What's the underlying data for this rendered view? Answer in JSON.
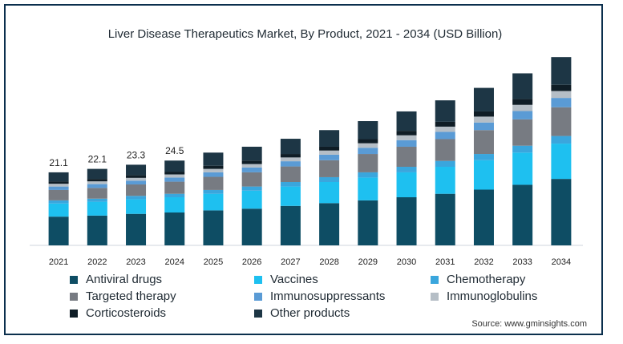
{
  "chart_data": {
    "type": "bar",
    "stacked": true,
    "title": "Liver Disease Therapeutics Market, By Product, 2021 - 2034 (USD Billion)",
    "categories": [
      "2021",
      "2022",
      "2023",
      "2024",
      "2025",
      "2026",
      "2027",
      "2028",
      "2029",
      "2030",
      "2031",
      "2032",
      "2033",
      "2034"
    ],
    "totals_labels": [
      "21.1",
      "22.1",
      "23.3",
      "24.5",
      "",
      "",
      "",
      "",
      "",
      "",
      "",
      "",
      "",
      ""
    ],
    "series": [
      {
        "name": "Antiviral drugs",
        "color": "#0e4d64",
        "values": [
          8.3,
          8.6,
          9.1,
          9.5,
          10.1,
          10.6,
          11.4,
          12.2,
          13.0,
          13.9,
          14.9,
          16.1,
          17.5,
          19.2
        ]
      },
      {
        "name": "Vaccines",
        "color": "#1ec0f0",
        "values": [
          3.8,
          4.0,
          4.2,
          4.4,
          4.8,
          5.2,
          5.6,
          6.1,
          6.6,
          7.2,
          7.8,
          8.5,
          9.3,
          10.2
        ]
      },
      {
        "name": "Chemotherapy",
        "color": "#3aa6dd",
        "values": [
          0.9,
          0.9,
          1.0,
          1.0,
          1.1,
          1.2,
          1.3,
          1.4,
          1.5,
          1.6,
          1.7,
          1.8,
          2.0,
          2.2
        ]
      },
      {
        "name": "Targeted therapy",
        "color": "#777b82",
        "values": [
          3.0,
          3.1,
          3.3,
          3.5,
          3.8,
          4.1,
          4.5,
          4.9,
          5.3,
          5.8,
          6.3,
          6.9,
          7.6,
          8.3
        ]
      },
      {
        "name": "Immunosuppressants",
        "color": "#5a9bd5",
        "values": [
          1.0,
          1.1,
          1.1,
          1.2,
          1.3,
          1.4,
          1.5,
          1.6,
          1.8,
          1.9,
          2.1,
          2.2,
          2.4,
          2.7
        ]
      },
      {
        "name": "Immunoglobulins",
        "color": "#b5bec6",
        "values": [
          0.8,
          0.8,
          0.8,
          0.9,
          1.0,
          1.0,
          1.1,
          1.2,
          1.3,
          1.4,
          1.5,
          1.7,
          1.8,
          2.0
        ]
      },
      {
        "name": "Corticosteroids",
        "color": "#0f1d26",
        "values": [
          0.7,
          0.7,
          0.8,
          0.8,
          0.9,
          1.0,
          1.0,
          1.1,
          1.2,
          1.3,
          1.4,
          1.5,
          1.7,
          1.8
        ]
      },
      {
        "name": "Other products",
        "color": "#1d3645",
        "values": [
          2.6,
          2.9,
          3.0,
          3.2,
          3.8,
          4.0,
          4.4,
          4.8,
          5.2,
          5.6,
          6.2,
          6.8,
          7.4,
          8.0
        ]
      }
    ],
    "ylim": [
      0,
      60
    ],
    "legend_position": "bottom",
    "grid": false
  },
  "source": "Source: www.gminsights.com"
}
